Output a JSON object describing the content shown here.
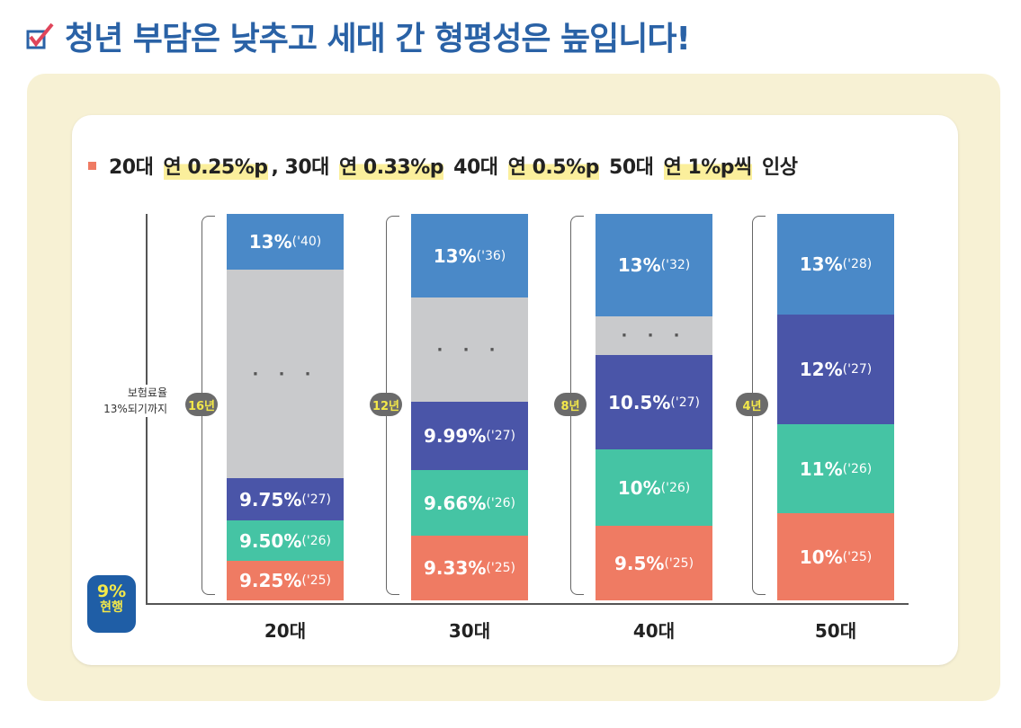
{
  "title": "청년 부담은 낮추고 세대 간 형평성은 높입니다!",
  "subtitle": {
    "parts": [
      "20대 ",
      "연 0.25%p",
      ", 30대 ",
      "연 0.33%p",
      " 40대 ",
      "연 0.5%p",
      " 50대 ",
      "연 1%p씩",
      " 인상"
    ]
  },
  "y_label": [
    "보험료율",
    "13%되기까지"
  ],
  "current": {
    "value": "9%",
    "label": "현행"
  },
  "colors": {
    "y25": "#ef7b63",
    "y26": "#45c4a4",
    "y27": "#4a55a8",
    "gap": "#c9cacc",
    "final": "#4a89c8"
  },
  "chart_data": {
    "type": "bar",
    "title": "20대 연 0.25%p, 30대 연 0.33%p 40대 연 0.5%p 50대 연 1%p씩 인상",
    "categories": [
      "20대",
      "30대",
      "40대",
      "50대"
    ],
    "years_to_13": [
      "16년",
      "12년",
      "8년",
      "4년"
    ],
    "columns": [
      {
        "category": "20대",
        "segments": [
          {
            "rate": "9.25%",
            "year": "('25)"
          },
          {
            "rate": "9.50%",
            "year": "('26)"
          },
          {
            "rate": "9.75%",
            "year": "('27)"
          },
          {
            "gap": "· · ·"
          },
          {
            "rate": "13%",
            "year": "('40)"
          }
        ]
      },
      {
        "category": "30대",
        "segments": [
          {
            "rate": "9.33%",
            "year": "('25)"
          },
          {
            "rate": "9.66%",
            "year": "('26)"
          },
          {
            "rate": "9.99%",
            "year": "('27)"
          },
          {
            "gap": "· · ·"
          },
          {
            "rate": "13%",
            "year": "('36)"
          }
        ]
      },
      {
        "category": "40대",
        "segments": [
          {
            "rate": "9.5%",
            "year": "('25)"
          },
          {
            "rate": "10%",
            "year": "('26)"
          },
          {
            "rate": "10.5%",
            "year": "('27)"
          },
          {
            "gap": "· · ·"
          },
          {
            "rate": "13%",
            "year": "('32)"
          }
        ]
      },
      {
        "category": "50대",
        "segments": [
          {
            "rate": "10%",
            "year": "('25)"
          },
          {
            "rate": "11%",
            "year": "('26)"
          },
          {
            "rate": "12%",
            "year": "('27)"
          },
          {
            "rate": "13%",
            "year": "('28)"
          }
        ]
      }
    ]
  }
}
